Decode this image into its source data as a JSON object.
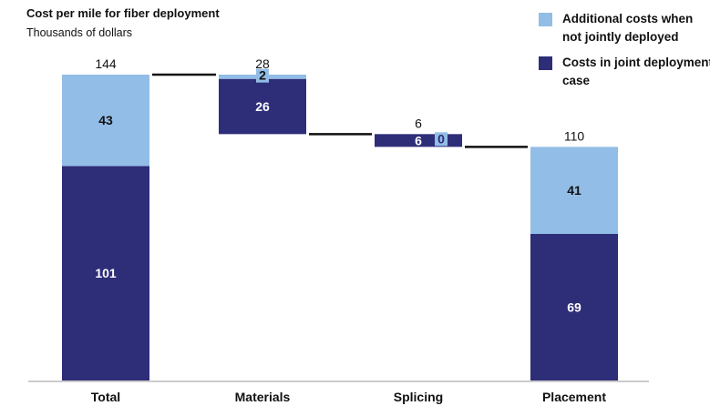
{
  "chart_data": {
    "type": "bar",
    "subtype": "waterfall-stacked",
    "title": "Cost per mile for fiber deployment",
    "subtitle": "Thousands of dollars",
    "categories": [
      "Total",
      "Materials",
      "Splicing",
      "Placement"
    ],
    "totals": [
      144,
      28,
      6,
      110
    ],
    "series": [
      {
        "name": "Costs in joint deployment case",
        "values": [
          101,
          26,
          6,
          69
        ],
        "color": "#2e2d78"
      },
      {
        "name": "Additional costs when not jointly deployed",
        "values": [
          43,
          2,
          0,
          41
        ],
        "color": "#92bde6"
      }
    ],
    "legend": {
      "position": "top-right",
      "items": [
        {
          "label": "Additional costs when not jointly deployed",
          "color": "#92bde6"
        },
        {
          "label": "Costs in joint deployment case",
          "color": "#2e2d78"
        }
      ]
    },
    "ylim": [
      0,
      144
    ],
    "grid": false,
    "connectors": true
  }
}
